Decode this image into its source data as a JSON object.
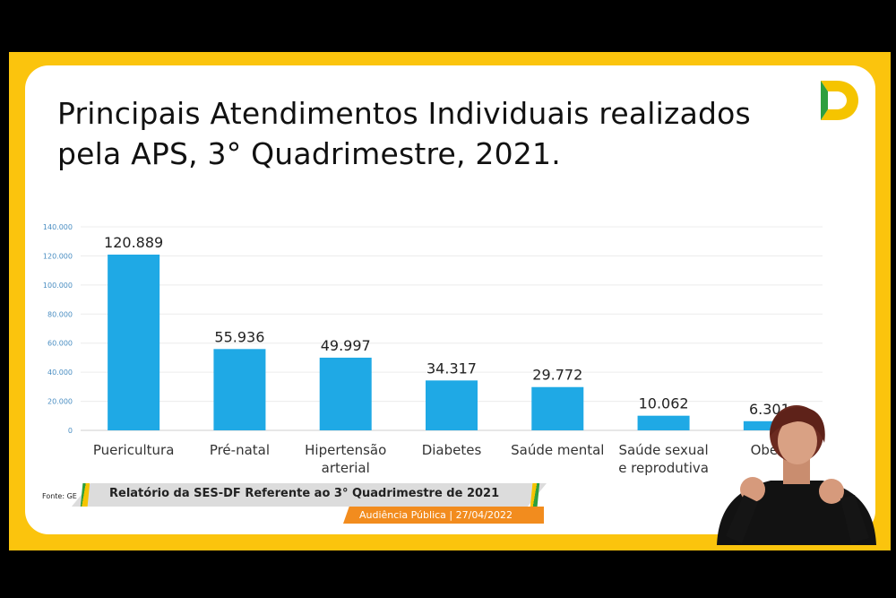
{
  "slide": {
    "title": "Principais Atendimentos Individuais realizados pela APS, 3° Quadrimestre, 2021."
  },
  "chart_data": {
    "type": "bar",
    "categories": [
      "Puericultura",
      "Pré-natal",
      "Hipertensão arterial",
      "Diabetes",
      "Saúde mental",
      "Saúde sexual e reprodutiva",
      "Obesidade"
    ],
    "category_lines": [
      [
        "Puericultura"
      ],
      [
        "Pré-natal"
      ],
      [
        "Hipertensão",
        "arterial"
      ],
      [
        "Diabetes"
      ],
      [
        "Saúde mental"
      ],
      [
        "Saúde sexual",
        "e reprodutiva"
      ],
      [
        "Obesi"
      ]
    ],
    "values": [
      120889,
      55936,
      49997,
      34317,
      29772,
      10062,
      6301
    ],
    "value_labels": [
      "120.889",
      "55.936",
      "49.997",
      "34.317",
      "29.772",
      "10.062",
      "6.301"
    ],
    "yticks": [
      "0",
      "20.000",
      "40.000",
      "60.000",
      "80.000",
      "100.000",
      "120.000",
      "140.000"
    ],
    "ylim": [
      0,
      140000
    ],
    "bar_color": "#1fa9e5",
    "grid": true,
    "title": "",
    "xlabel": "",
    "ylabel": ""
  },
  "footer": {
    "source_label": "Fonte: GE",
    "banner_title": "Relatório da SES-DF Referente ao 3° Quadrimestre de 2021",
    "banner_subtitle": "Audiência Pública  |  27/04/2022"
  },
  "colors": {
    "frame": "#fbc40d",
    "accent_orange": "#f28c1e",
    "brand_green": "#2e9f3e"
  },
  "icons": {
    "logo": "brand-d-logo-icon",
    "interpreter": "sign-language-interpreter"
  }
}
